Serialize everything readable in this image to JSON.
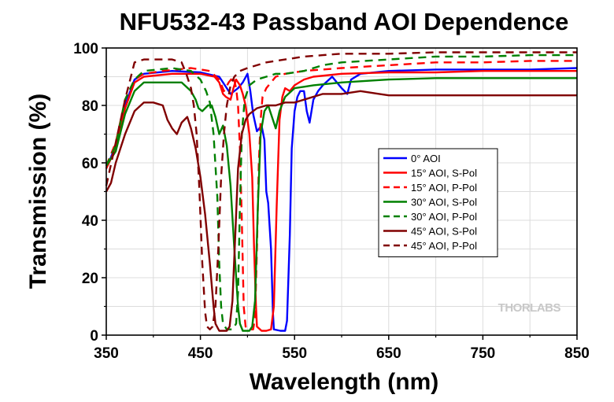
{
  "chart_data": {
    "type": "line",
    "title": "NFU532-43 Passband AOI Dependence",
    "xlabel": "Wavelength (nm)",
    "ylabel": "Transmission (%)",
    "xlim": [
      350,
      850
    ],
    "ylim": [
      0,
      100
    ],
    "xticks": [
      350,
      450,
      550,
      650,
      750,
      850
    ],
    "yticks": [
      0,
      20,
      40,
      60,
      80,
      100
    ],
    "grid": true,
    "legend_position": "center-right",
    "watermark": "THORLABS",
    "series": [
      {
        "name": "0° AOI",
        "color": "#0000ff",
        "dash": false,
        "points": [
          [
            350,
            58
          ],
          [
            360,
            66
          ],
          [
            370,
            80
          ],
          [
            380,
            89
          ],
          [
            390,
            91
          ],
          [
            420,
            92
          ],
          [
            450,
            91.5
          ],
          [
            470,
            90
          ],
          [
            478,
            86
          ],
          [
            482,
            84
          ],
          [
            490,
            86
          ],
          [
            495,
            88
          ],
          [
            500,
            91
          ],
          [
            503,
            85
          ],
          [
            506,
            77
          ],
          [
            510,
            71
          ],
          [
            515,
            73
          ],
          [
            518,
            68
          ],
          [
            520,
            50
          ],
          [
            522,
            46
          ],
          [
            525,
            30
          ],
          [
            527,
            8
          ],
          [
            528,
            2
          ],
          [
            535,
            1.5
          ],
          [
            540,
            1.5
          ],
          [
            542,
            5
          ],
          [
            545,
            35
          ],
          [
            547,
            65
          ],
          [
            550,
            78
          ],
          [
            553,
            83
          ],
          [
            556,
            85
          ],
          [
            560,
            85
          ],
          [
            563,
            78
          ],
          [
            566,
            74
          ],
          [
            570,
            82
          ],
          [
            575,
            85
          ],
          [
            580,
            87
          ],
          [
            590,
            90
          ],
          [
            600,
            86
          ],
          [
            606,
            84
          ],
          [
            610,
            89
          ],
          [
            620,
            91
          ],
          [
            650,
            92
          ],
          [
            700,
            92.5
          ],
          [
            750,
            92.5
          ],
          [
            800,
            92.5
          ],
          [
            850,
            93
          ]
        ]
      },
      {
        "name": "15° AOI, S-Pol",
        "color": "#ff0000",
        "dash": false,
        "points": [
          [
            350,
            58
          ],
          [
            360,
            65
          ],
          [
            370,
            79
          ],
          [
            380,
            88
          ],
          [
            390,
            90
          ],
          [
            420,
            91
          ],
          [
            450,
            91
          ],
          [
            465,
            90
          ],
          [
            470,
            88
          ],
          [
            474,
            84
          ],
          [
            477,
            83
          ],
          [
            482,
            82
          ],
          [
            485,
            86
          ],
          [
            488,
            89
          ],
          [
            492,
            87
          ],
          [
            495,
            84
          ],
          [
            498,
            80
          ],
          [
            500,
            75
          ],
          [
            502,
            70
          ],
          [
            505,
            55
          ],
          [
            507,
            30
          ],
          [
            509,
            10
          ],
          [
            510,
            3
          ],
          [
            515,
            1.5
          ],
          [
            520,
            1.5
          ],
          [
            525,
            2
          ],
          [
            528,
            10
          ],
          [
            531,
            45
          ],
          [
            534,
            75
          ],
          [
            537,
            83
          ],
          [
            540,
            86
          ],
          [
            545,
            85
          ],
          [
            550,
            87
          ],
          [
            560,
            89
          ],
          [
            570,
            90
          ],
          [
            600,
            91
          ],
          [
            650,
            91.5
          ],
          [
            700,
            91.5
          ],
          [
            750,
            92
          ],
          [
            800,
            92
          ],
          [
            850,
            92
          ]
        ]
      },
      {
        "name": "15° AOI, P-Pol",
        "color": "#ff0000",
        "dash": true,
        "points": [
          [
            350,
            59
          ],
          [
            360,
            67
          ],
          [
            370,
            82
          ],
          [
            380,
            89
          ],
          [
            390,
            91
          ],
          [
            410,
            92
          ],
          [
            440,
            93
          ],
          [
            460,
            92
          ],
          [
            470,
            89
          ],
          [
            475,
            85
          ],
          [
            480,
            88
          ],
          [
            485,
            90
          ],
          [
            488,
            86
          ],
          [
            490,
            80
          ],
          [
            492,
            65
          ],
          [
            494,
            40
          ],
          [
            496,
            10
          ],
          [
            498,
            3
          ],
          [
            502,
            2
          ],
          [
            506,
            2
          ],
          [
            508,
            6
          ],
          [
            510,
            30
          ],
          [
            512,
            60
          ],
          [
            514,
            75
          ],
          [
            516,
            83
          ],
          [
            520,
            86
          ],
          [
            525,
            88
          ],
          [
            530,
            90
          ],
          [
            540,
            91
          ],
          [
            560,
            92
          ],
          [
            600,
            93
          ],
          [
            650,
            94
          ],
          [
            700,
            95
          ],
          [
            750,
            95
          ],
          [
            800,
            95.5
          ],
          [
            850,
            95.5
          ]
        ]
      },
      {
        "name": "30° AOI, S-Pol",
        "color": "#008000",
        "dash": false,
        "points": [
          [
            350,
            59
          ],
          [
            360,
            64
          ],
          [
            370,
            77
          ],
          [
            380,
            85
          ],
          [
            390,
            88
          ],
          [
            410,
            88
          ],
          [
            430,
            88
          ],
          [
            440,
            85
          ],
          [
            445,
            82
          ],
          [
            448,
            79
          ],
          [
            452,
            78
          ],
          [
            458,
            80
          ],
          [
            462,
            80
          ],
          [
            466,
            76
          ],
          [
            470,
            70
          ],
          [
            474,
            73
          ],
          [
            478,
            66
          ],
          [
            482,
            52
          ],
          [
            486,
            30
          ],
          [
            490,
            10
          ],
          [
            492,
            4
          ],
          [
            495,
            1.5
          ],
          [
            502,
            1.5
          ],
          [
            505,
            3
          ],
          [
            508,
            12
          ],
          [
            511,
            45
          ],
          [
            514,
            70
          ],
          [
            518,
            78
          ],
          [
            522,
            80
          ],
          [
            526,
            76
          ],
          [
            530,
            72
          ],
          [
            534,
            78
          ],
          [
            540,
            83
          ],
          [
            550,
            86
          ],
          [
            560,
            86.5
          ],
          [
            570,
            87
          ],
          [
            600,
            88
          ],
          [
            650,
            89
          ],
          [
            700,
            89.5
          ],
          [
            750,
            89.5
          ],
          [
            800,
            89.5
          ],
          [
            850,
            89.5
          ]
        ]
      },
      {
        "name": "30° AOI, P-Pol",
        "color": "#008000",
        "dash": true,
        "points": [
          [
            350,
            59
          ],
          [
            360,
            66
          ],
          [
            370,
            82
          ],
          [
            380,
            89
          ],
          [
            390,
            92
          ],
          [
            420,
            93
          ],
          [
            440,
            92
          ],
          [
            450,
            89
          ],
          [
            456,
            85
          ],
          [
            460,
            81
          ],
          [
            464,
            70
          ],
          [
            468,
            48
          ],
          [
            470,
            25
          ],
          [
            472,
            10
          ],
          [
            474,
            4
          ],
          [
            478,
            2
          ],
          [
            484,
            2
          ],
          [
            488,
            4
          ],
          [
            490,
            15
          ],
          [
            492,
            45
          ],
          [
            494,
            70
          ],
          [
            497,
            82
          ],
          [
            502,
            87
          ],
          [
            510,
            89
          ],
          [
            520,
            90
          ],
          [
            530,
            91
          ],
          [
            540,
            91
          ],
          [
            560,
            92
          ],
          [
            580,
            94
          ],
          [
            600,
            95
          ],
          [
            650,
            96
          ],
          [
            700,
            97
          ],
          [
            750,
            97
          ],
          [
            800,
            97.5
          ],
          [
            850,
            97.5
          ]
        ]
      },
      {
        "name": "45° AOI, S-Pol",
        "color": "#800000",
        "dash": false,
        "points": [
          [
            350,
            50
          ],
          [
            355,
            53
          ],
          [
            360,
            60
          ],
          [
            370,
            70
          ],
          [
            380,
            78
          ],
          [
            390,
            81
          ],
          [
            400,
            81
          ],
          [
            410,
            80
          ],
          [
            415,
            75
          ],
          [
            420,
            72
          ],
          [
            425,
            70
          ],
          [
            430,
            74
          ],
          [
            436,
            76
          ],
          [
            440,
            72
          ],
          [
            445,
            65
          ],
          [
            450,
            55
          ],
          [
            455,
            42
          ],
          [
            460,
            25
          ],
          [
            464,
            10
          ],
          [
            466,
            4
          ],
          [
            470,
            1.5
          ],
          [
            478,
            1.5
          ],
          [
            481,
            3
          ],
          [
            484,
            12
          ],
          [
            487,
            35
          ],
          [
            490,
            58
          ],
          [
            494,
            70
          ],
          [
            498,
            75
          ],
          [
            502,
            77
          ],
          [
            510,
            79
          ],
          [
            520,
            80
          ],
          [
            530,
            80
          ],
          [
            540,
            81
          ],
          [
            550,
            81
          ],
          [
            560,
            82
          ],
          [
            580,
            84
          ],
          [
            600,
            84
          ],
          [
            620,
            85
          ],
          [
            640,
            84
          ],
          [
            650,
            83.5
          ],
          [
            700,
            83.5
          ],
          [
            750,
            83.5
          ],
          [
            800,
            83.5
          ],
          [
            850,
            83.5
          ]
        ]
      },
      {
        "name": "45° AOI, P-Pol",
        "color": "#800000",
        "dash": true,
        "points": [
          [
            350,
            52
          ],
          [
            360,
            67
          ],
          [
            370,
            82
          ],
          [
            380,
            95
          ],
          [
            390,
            96
          ],
          [
            400,
            96
          ],
          [
            420,
            96
          ],
          [
            430,
            95
          ],
          [
            435,
            91
          ],
          [
            440,
            86
          ],
          [
            443,
            80
          ],
          [
            446,
            70
          ],
          [
            449,
            50
          ],
          [
            452,
            25
          ],
          [
            455,
            8
          ],
          [
            457,
            3
          ],
          [
            460,
            2
          ],
          [
            463,
            3
          ],
          [
            466,
            10
          ],
          [
            469,
            30
          ],
          [
            472,
            55
          ],
          [
            475,
            70
          ],
          [
            478,
            80
          ],
          [
            482,
            87
          ],
          [
            486,
            90
          ],
          [
            492,
            92
          ],
          [
            500,
            93
          ],
          [
            510,
            94
          ],
          [
            520,
            95
          ],
          [
            540,
            96
          ],
          [
            560,
            97
          ],
          [
            580,
            97.5
          ],
          [
            600,
            98
          ],
          [
            650,
            98
          ],
          [
            700,
            98.5
          ],
          [
            750,
            98.5
          ],
          [
            800,
            98.5
          ],
          [
            850,
            98.5
          ]
        ]
      }
    ]
  }
}
